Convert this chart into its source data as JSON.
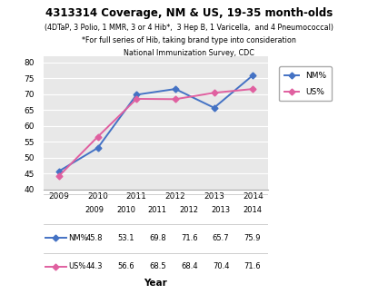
{
  "title": "4313314 Coverage, NM & US, 19-35 month-olds",
  "subtitle1": "(4DTaP, 3 Polio, 1 MMR, 3 or 4 Hib*,  3 Hep B, 1 Varicella,  and 4 Pneumococcal)",
  "subtitle2": "*For full series of Hib, taking brand type into consideration",
  "subtitle3": "National Immunization Survey, CDC",
  "xlabel": "Year",
  "years": [
    2009,
    2010,
    2011,
    2012,
    2013,
    2014
  ],
  "nm_values": [
    45.8,
    53.1,
    69.8,
    71.6,
    65.7,
    75.9
  ],
  "us_values": [
    44.3,
    56.6,
    68.5,
    68.4,
    70.4,
    71.6
  ],
  "nm_color": "#4472C4",
  "us_color": "#E060A0",
  "ylim": [
    40,
    82
  ],
  "yticks": [
    40,
    45,
    50,
    55,
    60,
    65,
    70,
    75,
    80
  ],
  "bg_color": "#E8E8E8",
  "grid_color": "#FFFFFF",
  "legend_nm": "NM%",
  "legend_us": "US%",
  "table_row1": [
    "2009",
    "2010",
    "2011",
    "2012",
    "2013",
    "2014"
  ],
  "table_nm": [
    "45.8",
    "53.1",
    "69.8",
    "71.6",
    "65.7",
    "75.9"
  ],
  "table_us": [
    "44.3",
    "56.6",
    "68.5",
    "68.4",
    "70.4",
    "71.6"
  ]
}
